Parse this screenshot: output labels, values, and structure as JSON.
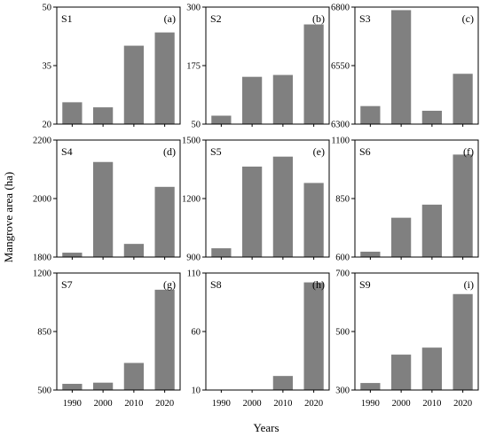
{
  "figure": {
    "ylabel": "Mangrove area (ha)",
    "xlabel": "Years",
    "bar_color": "#808080",
    "axis_color": "#000000"
  },
  "chart_data": [
    {
      "type": "bar",
      "site": "S1",
      "letter": "(a)",
      "categories": [
        "1990",
        "2000",
        "2010",
        "2020"
      ],
      "values": [
        25.6,
        24.3,
        40.1,
        43.5
      ],
      "ylim": [
        20,
        50
      ],
      "yticks": [
        "20",
        "35",
        "50"
      ],
      "show_xticks": false
    },
    {
      "type": "bar",
      "site": "S2",
      "letter": "(b)",
      "categories": [
        "1990",
        "2000",
        "2010",
        "2020"
      ],
      "values": [
        68,
        151,
        155,
        263
      ],
      "ylim": [
        50,
        300
      ],
      "yticks": [
        "50",
        "175",
        "300"
      ],
      "show_xticks": false
    },
    {
      "type": "bar",
      "site": "S3",
      "letter": "(c)",
      "categories": [
        "1990",
        "2000",
        "2010",
        "2020"
      ],
      "values": [
        6377,
        6787,
        6357,
        6515
      ],
      "ylim": [
        6300,
        6800
      ],
      "yticks": [
        "6300",
        "6550",
        "6800"
      ],
      "show_xticks": false
    },
    {
      "type": "bar",
      "site": "S4",
      "letter": "(d)",
      "categories": [
        "1990",
        "2000",
        "2010",
        "2020"
      ],
      "values": [
        1815,
        2125,
        1845,
        2040
      ],
      "ylim": [
        1800,
        2200
      ],
      "yticks": [
        "1800",
        "2000",
        "2200"
      ],
      "show_xticks": false
    },
    {
      "type": "bar",
      "site": "S5",
      "letter": "(e)",
      "categories": [
        "1990",
        "2000",
        "2010",
        "2020"
      ],
      "values": [
        945,
        1364,
        1415,
        1280
      ],
      "ylim": [
        900,
        1500
      ],
      "yticks": [
        "900",
        "1200",
        "1500"
      ],
      "show_xticks": false
    },
    {
      "type": "bar",
      "site": "S6",
      "letter": "(f)",
      "categories": [
        "1990",
        "2000",
        "2010",
        "2020"
      ],
      "values": [
        623,
        768,
        824,
        1038
      ],
      "ylim": [
        600,
        1100
      ],
      "yticks": [
        "600",
        "850",
        "1100"
      ],
      "show_xticks": false
    },
    {
      "type": "bar",
      "site": "S7",
      "letter": "(g)",
      "categories": [
        "1990",
        "2000",
        "2010",
        "2020"
      ],
      "values": [
        537,
        544,
        662,
        1100
      ],
      "ylim": [
        500,
        1200
      ],
      "yticks": [
        "500",
        "850",
        "1200"
      ],
      "show_xticks": true
    },
    {
      "type": "bar",
      "site": "S8",
      "letter": "(h)",
      "categories": [
        "1990",
        "2000",
        "2010",
        "2020"
      ],
      "values": [
        10,
        10,
        22,
        102
      ],
      "ylim": [
        10,
        110
      ],
      "yticks": [
        "10",
        "60",
        "110"
      ],
      "show_xticks": true
    },
    {
      "type": "bar",
      "site": "S9",
      "letter": "(i)",
      "categories": [
        "1990",
        "2000",
        "2010",
        "2020"
      ],
      "values": [
        324,
        421,
        445,
        628
      ],
      "ylim": [
        300,
        700
      ],
      "yticks": [
        "300",
        "500",
        "700"
      ],
      "show_xticks": true
    }
  ]
}
